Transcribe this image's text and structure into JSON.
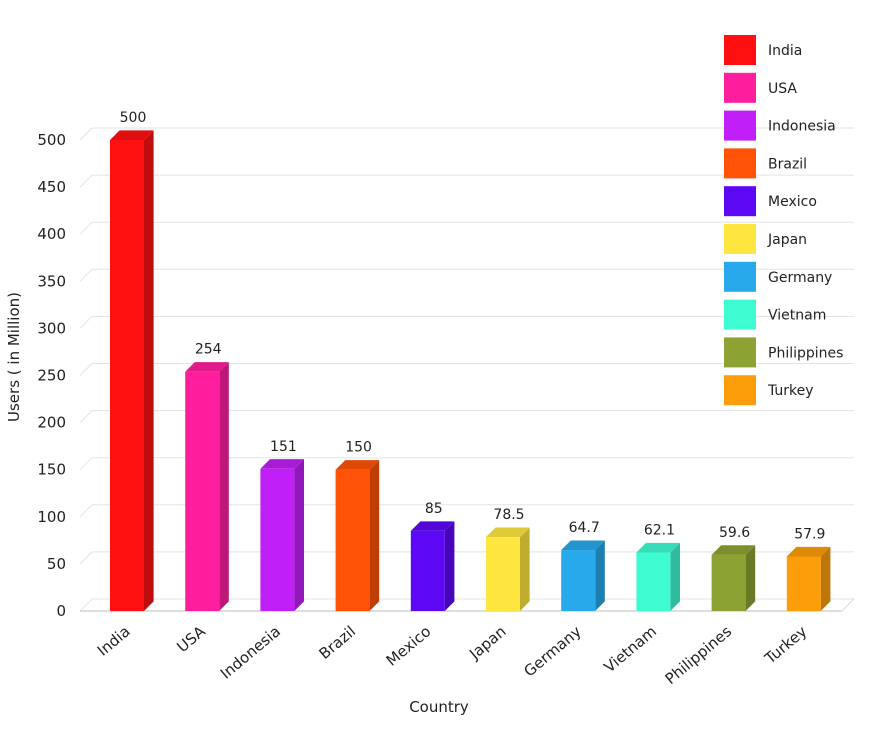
{
  "chart_data": {
    "type": "bar",
    "xlabel": "Country",
    "ylabel": "Users ( in Million)",
    "ylim": [
      0,
      500
    ],
    "yticks": [
      0,
      50,
      100,
      150,
      200,
      250,
      300,
      350,
      400,
      450,
      500
    ],
    "grid": true,
    "legend_position": "top-right",
    "categories": [
      "India",
      "USA",
      "Indonesia",
      "Brazil",
      "Mexico",
      "Japan",
      "Germany",
      "Vietnam",
      "Philippines",
      "Turkey"
    ],
    "values": [
      500,
      254,
      151,
      150,
      85,
      78.5,
      64.7,
      62.1,
      59.6,
      57.9
    ],
    "value_labels": [
      "500",
      "254",
      "151",
      "150",
      "85",
      "78.5",
      "64.7",
      "62.1",
      "59.6",
      "57.9"
    ],
    "colors": [
      "#ff1010",
      "#ff1f9e",
      "#c01ff7",
      "#ff5206",
      "#5d08f5",
      "#ffe63e",
      "#27a9eb",
      "#3ffbd2",
      "#8ca232",
      "#fc9d0a"
    ]
  }
}
